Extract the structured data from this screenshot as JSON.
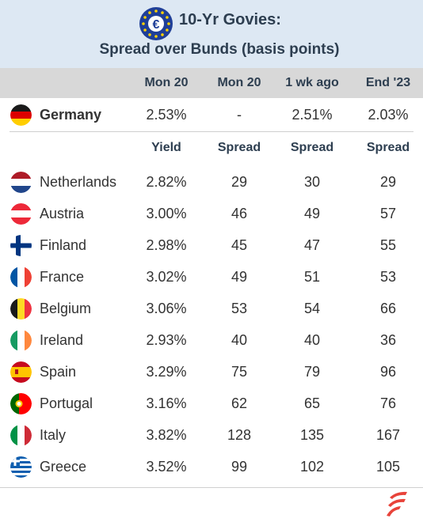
{
  "header": {
    "title": "10-Yr Govies:",
    "subtitle": "Spread over Bunds (basis points)",
    "logo_icon": "euro-coin-icon"
  },
  "columns": {
    "c1": "Mon 20",
    "c2": "Mon 20",
    "c3": "1 wk ago",
    "c4": "End '23"
  },
  "benchmark": {
    "country": "Germany",
    "flag": "germany-flag-icon",
    "yield": "2.53%",
    "spread_now": "-",
    "spread_1wk": "2.51%",
    "spread_end23": "2.03%"
  },
  "subheaders": {
    "s1": "Yield",
    "s2": "Spread",
    "s3": "Spread",
    "s4": "Spread"
  },
  "rows": [
    {
      "country": "Netherlands",
      "flag": "netherlands-flag-icon",
      "yield": "2.82%",
      "spread": "29",
      "wk": "30",
      "end": "29"
    },
    {
      "country": "Austria",
      "flag": "austria-flag-icon",
      "yield": "3.00%",
      "spread": "46",
      "wk": "49",
      "end": "57"
    },
    {
      "country": "Finland",
      "flag": "finland-flag-icon",
      "yield": "2.98%",
      "spread": "45",
      "wk": "47",
      "end": "55"
    },
    {
      "country": "France",
      "flag": "france-flag-icon",
      "yield": "3.02%",
      "spread": "49",
      "wk": "51",
      "end": "53"
    },
    {
      "country": "Belgium",
      "flag": "belgium-flag-icon",
      "yield": "3.06%",
      "spread": "53",
      "wk": "54",
      "end": "66"
    },
    {
      "country": "Ireland",
      "flag": "ireland-flag-icon",
      "yield": "2.93%",
      "spread": "40",
      "wk": "40",
      "end": "36"
    },
    {
      "country": "Spain",
      "flag": "spain-flag-icon",
      "yield": "3.29%",
      "spread": "75",
      "wk": "79",
      "end": "96"
    },
    {
      "country": "Portugal",
      "flag": "portugal-flag-icon",
      "yield": "3.16%",
      "spread": "62",
      "wk": "65",
      "end": "76"
    },
    {
      "country": "Italy",
      "flag": "italy-flag-icon",
      "yield": "3.82%",
      "spread": "128",
      "wk": "135",
      "end": "167"
    },
    {
      "country": "Greece",
      "flag": "greece-flag-icon",
      "yield": "3.52%",
      "spread": "99",
      "wk": "102",
      "end": "105"
    }
  ],
  "footer_logo": "brand-logo-icon",
  "chart_data": {
    "type": "table",
    "title": "10-Yr Govies:",
    "subtitle": "Spread over Bunds (basis points)",
    "columns": [
      "Mon 20 Yield",
      "Mon 20 Spread",
      "1 wk ago Spread",
      "End '23 Spread"
    ],
    "benchmark": {
      "country": "Germany",
      "values": [
        "2.53%",
        "-",
        "2.51%",
        "2.03%"
      ]
    },
    "rows": [
      {
        "country": "Netherlands",
        "values": [
          "2.82%",
          29,
          30,
          29
        ]
      },
      {
        "country": "Austria",
        "values": [
          "3.00%",
          46,
          49,
          57
        ]
      },
      {
        "country": "Finland",
        "values": [
          "2.98%",
          45,
          47,
          55
        ]
      },
      {
        "country": "France",
        "values": [
          "3.02%",
          49,
          51,
          53
        ]
      },
      {
        "country": "Belgium",
        "values": [
          "3.06%",
          53,
          54,
          66
        ]
      },
      {
        "country": "Ireland",
        "values": [
          "2.93%",
          40,
          40,
          36
        ]
      },
      {
        "country": "Spain",
        "values": [
          "3.29%",
          75,
          79,
          96
        ]
      },
      {
        "country": "Portugal",
        "values": [
          "3.16%",
          62,
          65,
          76
        ]
      },
      {
        "country": "Italy",
        "values": [
          "3.82%",
          128,
          135,
          167
        ]
      },
      {
        "country": "Greece",
        "values": [
          "3.52%",
          99,
          102,
          105
        ]
      }
    ]
  }
}
